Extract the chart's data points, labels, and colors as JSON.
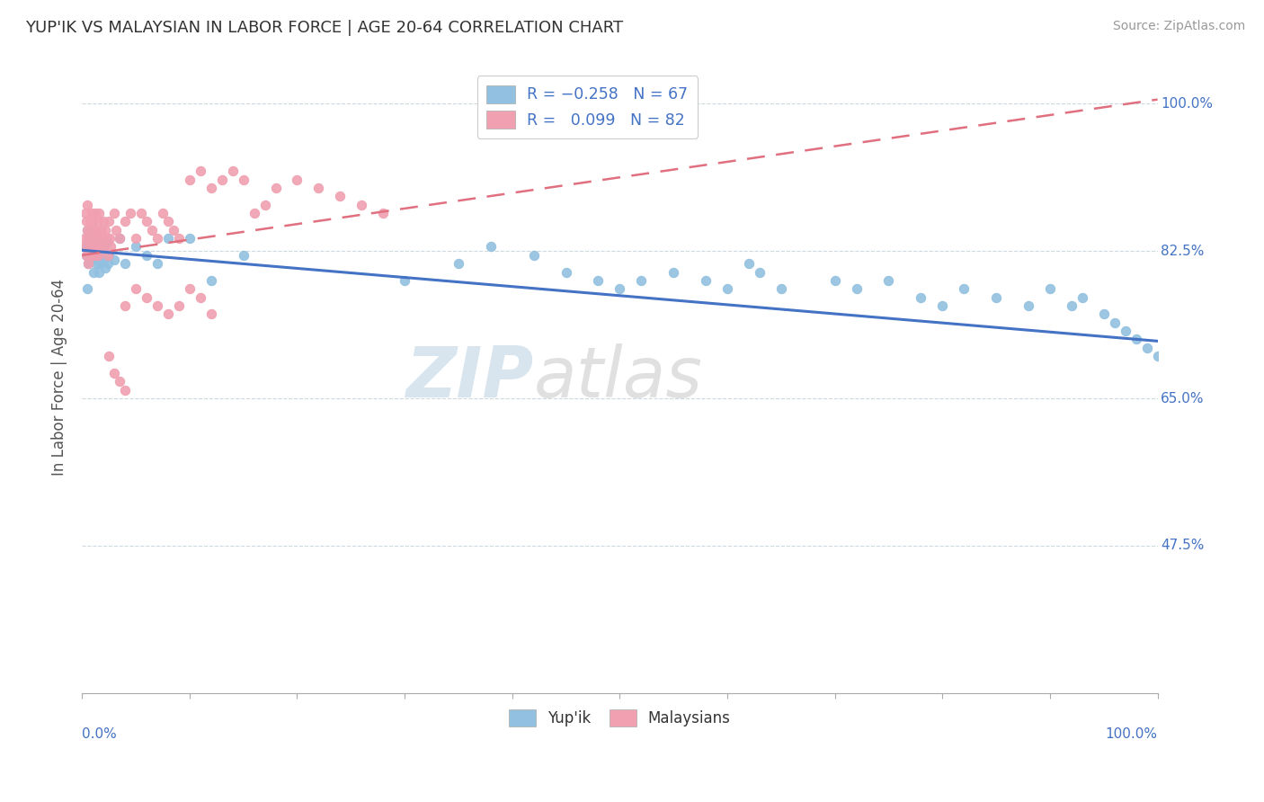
{
  "title": "YUP'IK VS MALAYSIAN IN LABOR FORCE | AGE 20-64 CORRELATION CHART",
  "source": "Source: ZipAtlas.com",
  "ylabel": "In Labor Force | Age 20-64",
  "ytick_labels": [
    "47.5%",
    "65.0%",
    "82.5%",
    "100.0%"
  ],
  "ytick_values": [
    0.475,
    0.65,
    0.825,
    1.0
  ],
  "legend_labels_bottom": [
    "Yup'ik",
    "Malaysians"
  ],
  "yupik_color": "#92c0e0",
  "malaysian_color": "#f0a0b0",
  "trendline_yupik_color": "#4472c4",
  "trendline_malaysian_color": "#e07080",
  "watermark_zip": "ZIP",
  "watermark_atlas": "atlas",
  "xlim": [
    0.0,
    1.0
  ],
  "ylim": [
    0.3,
    1.05
  ],
  "yupik_x": [
    0.003,
    0.004,
    0.005,
    0.005,
    0.006,
    0.006,
    0.007,
    0.008,
    0.009,
    0.01,
    0.01,
    0.011,
    0.012,
    0.013,
    0.014,
    0.015,
    0.016,
    0.017,
    0.018,
    0.019,
    0.02,
    0.021,
    0.022,
    0.023,
    0.024,
    0.025,
    0.03,
    0.035,
    0.04,
    0.05,
    0.06,
    0.07,
    0.08,
    0.1,
    0.12,
    0.15,
    0.3,
    0.35,
    0.38,
    0.42,
    0.45,
    0.48,
    0.5,
    0.52,
    0.55,
    0.58,
    0.6,
    0.62,
    0.63,
    0.65,
    0.7,
    0.72,
    0.75,
    0.78,
    0.8,
    0.82,
    0.85,
    0.88,
    0.9,
    0.92,
    0.93,
    0.95,
    0.96,
    0.97,
    0.98,
    0.99,
    1.0
  ],
  "yupik_y": [
    0.83,
    0.82,
    0.85,
    0.78,
    0.81,
    0.84,
    0.825,
    0.835,
    0.815,
    0.845,
    0.82,
    0.8,
    0.83,
    0.81,
    0.84,
    0.82,
    0.8,
    0.81,
    0.83,
    0.82,
    0.815,
    0.825,
    0.805,
    0.835,
    0.81,
    0.82,
    0.815,
    0.84,
    0.81,
    0.83,
    0.82,
    0.81,
    0.84,
    0.84,
    0.79,
    0.82,
    0.79,
    0.81,
    0.83,
    0.82,
    0.8,
    0.79,
    0.78,
    0.79,
    0.8,
    0.79,
    0.78,
    0.81,
    0.8,
    0.78,
    0.79,
    0.78,
    0.79,
    0.77,
    0.76,
    0.78,
    0.77,
    0.76,
    0.78,
    0.76,
    0.77,
    0.75,
    0.74,
    0.73,
    0.72,
    0.71,
    0.7
  ],
  "malaysian_x": [
    0.002,
    0.003,
    0.003,
    0.004,
    0.004,
    0.005,
    0.005,
    0.006,
    0.006,
    0.007,
    0.007,
    0.008,
    0.008,
    0.009,
    0.009,
    0.01,
    0.01,
    0.011,
    0.011,
    0.012,
    0.012,
    0.013,
    0.013,
    0.014,
    0.014,
    0.015,
    0.015,
    0.016,
    0.016,
    0.017,
    0.018,
    0.019,
    0.02,
    0.021,
    0.022,
    0.023,
    0.024,
    0.025,
    0.026,
    0.027,
    0.03,
    0.032,
    0.035,
    0.04,
    0.045,
    0.05,
    0.055,
    0.06,
    0.065,
    0.07,
    0.075,
    0.08,
    0.085,
    0.09,
    0.1,
    0.11,
    0.12,
    0.13,
    0.14,
    0.15,
    0.16,
    0.17,
    0.18,
    0.2,
    0.22,
    0.24,
    0.26,
    0.28,
    0.04,
    0.05,
    0.06,
    0.07,
    0.08,
    0.09,
    0.1,
    0.11,
    0.12,
    0.025,
    0.03,
    0.035,
    0.04
  ],
  "malaysian_y": [
    0.84,
    0.87,
    0.83,
    0.86,
    0.82,
    0.85,
    0.88,
    0.84,
    0.81,
    0.86,
    0.83,
    0.85,
    0.82,
    0.84,
    0.87,
    0.83,
    0.86,
    0.84,
    0.82,
    0.85,
    0.87,
    0.84,
    0.82,
    0.85,
    0.83,
    0.86,
    0.82,
    0.84,
    0.87,
    0.83,
    0.85,
    0.84,
    0.86,
    0.83,
    0.85,
    0.84,
    0.82,
    0.86,
    0.84,
    0.83,
    0.87,
    0.85,
    0.84,
    0.86,
    0.87,
    0.84,
    0.87,
    0.86,
    0.85,
    0.84,
    0.87,
    0.86,
    0.85,
    0.84,
    0.91,
    0.92,
    0.9,
    0.91,
    0.92,
    0.91,
    0.87,
    0.88,
    0.9,
    0.91,
    0.9,
    0.89,
    0.88,
    0.87,
    0.76,
    0.78,
    0.77,
    0.76,
    0.75,
    0.76,
    0.78,
    0.77,
    0.75,
    0.7,
    0.68,
    0.67,
    0.66
  ],
  "trendline_yupik_x0": 0.0,
  "trendline_yupik_x1": 1.0,
  "trendline_yupik_y0": 0.826,
  "trendline_yupik_y1": 0.718,
  "trendline_malay_x0": 0.0,
  "trendline_malay_x1": 1.0,
  "trendline_malay_y0": 0.82,
  "trendline_malay_y1": 1.005
}
